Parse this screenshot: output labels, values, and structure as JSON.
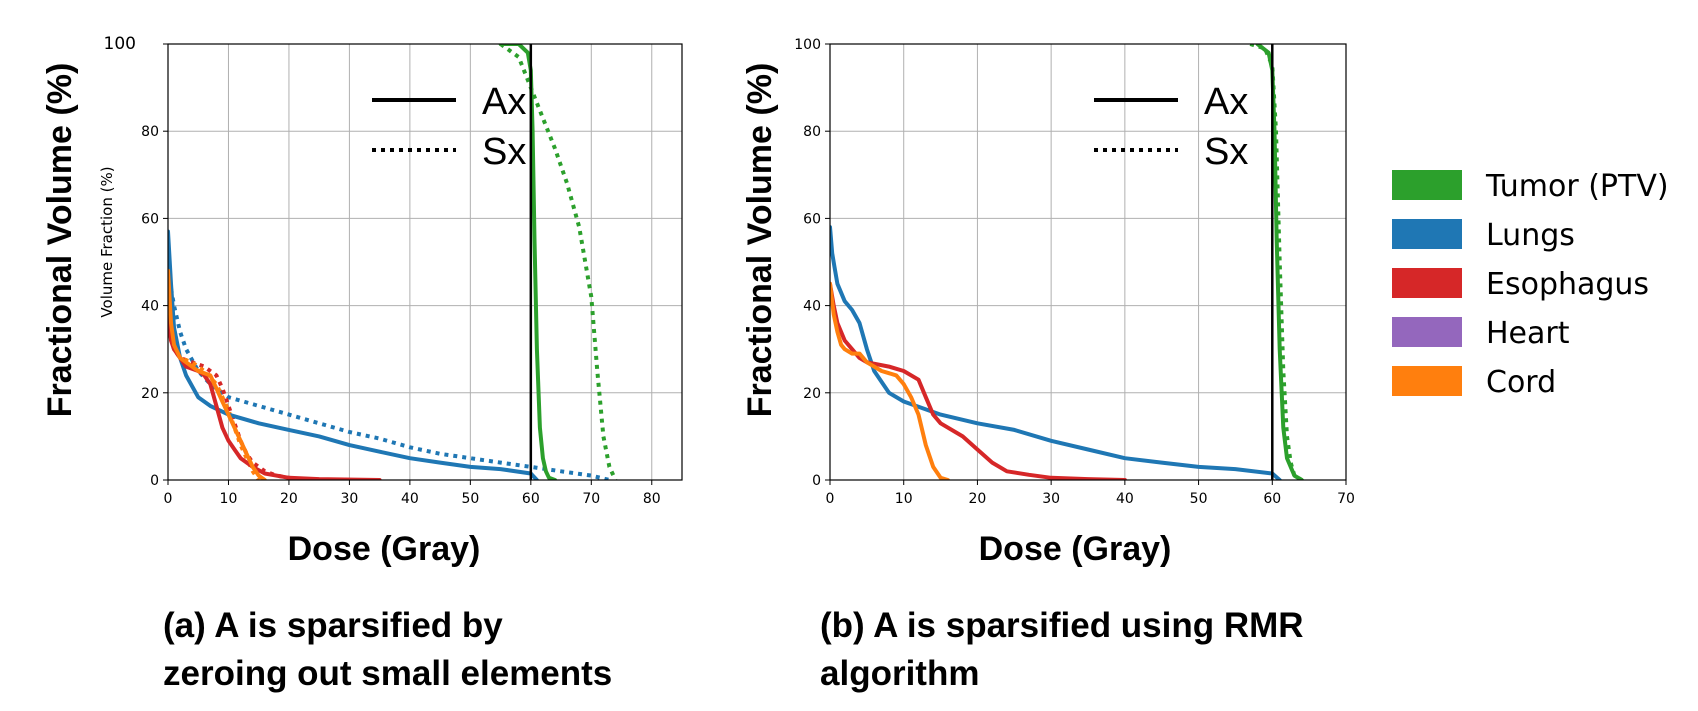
{
  "colors": {
    "tumor": "#2ca02c",
    "lungs": "#1f77b4",
    "esophagus": "#d62728",
    "heart": "#9467bd",
    "cord": "#ff7f0e"
  },
  "shared": {
    "ylabel_big": "Fractional Volume (%)",
    "xlabel_big": "Dose (Gray)",
    "style_legend": [
      {
        "label": "Ax",
        "style": "solid"
      },
      {
        "label": "Sx",
        "style": "dotted"
      }
    ],
    "structure_legend": [
      {
        "label": "Tumor (PTV)",
        "color": "#2ca02c"
      },
      {
        "label": "Lungs",
        "color": "#1f77b4"
      },
      {
        "label": "Esophagus",
        "color": "#d62728"
      },
      {
        "label": "Heart",
        "color": "#9467bd"
      },
      {
        "label": "Cord",
        "color": "#ff7f0e"
      }
    ]
  },
  "captions": {
    "a_line1": "(a) A is sparsified by",
    "a_line2": "zeroing out small elements",
    "b_line1": "(b) A is sparsified using RMR",
    "b_line2": "algorithm"
  },
  "chart_data": [
    {
      "type": "line",
      "panel": "a",
      "ylabel_small": "Volume Fraction (%)",
      "xlim": [
        0,
        85
      ],
      "ylim": [
        0,
        100
      ],
      "x_ticks": [
        0,
        10,
        20,
        30,
        40,
        50,
        60,
        70,
        80
      ],
      "y_ticks": [
        0,
        20,
        40,
        60,
        80,
        100
      ],
      "x_tick_labels": [
        "0",
        "10",
        "20",
        "30",
        "40",
        "50",
        "60",
        "70",
        "80"
      ],
      "y_tick_labels": [
        "0",
        "20",
        "40",
        "60",
        "80",
        "100"
      ],
      "grid": true,
      "series": [
        {
          "structure": "Tumor (PTV)",
          "style": "solid",
          "color": "#2ca02c",
          "x": [
            55,
            58,
            59.5,
            60,
            60.3,
            60.6,
            61,
            61.5,
            62,
            62.5,
            63,
            64
          ],
          "y": [
            100,
            100,
            98,
            94,
            80,
            55,
            30,
            12,
            5,
            2,
            0.5,
            0
          ]
        },
        {
          "structure": "Tumor (PTV)",
          "style": "dotted",
          "color": "#2ca02c",
          "x": [
            55,
            58,
            60,
            62,
            64,
            66,
            68,
            70,
            71,
            72,
            73,
            74
          ],
          "y": [
            100,
            97,
            90,
            83,
            76,
            68,
            58,
            42,
            25,
            10,
            3,
            0
          ]
        },
        {
          "structure": "Lungs",
          "style": "solid",
          "color": "#1f77b4",
          "x": [
            0,
            0.5,
            1,
            2,
            3,
            5,
            7,
            10,
            15,
            20,
            25,
            30,
            35,
            40,
            45,
            50,
            55,
            60,
            61
          ],
          "y": [
            57,
            45,
            35,
            28,
            24,
            19,
            17,
            15,
            13,
            11.5,
            10,
            8,
            6.5,
            5,
            4,
            3,
            2.5,
            1.5,
            0
          ]
        },
        {
          "structure": "Lungs",
          "style": "dotted",
          "color": "#1f77b4",
          "x": [
            0,
            0.5,
            1,
            2,
            3,
            5,
            7,
            10,
            15,
            20,
            25,
            30,
            35,
            40,
            45,
            50,
            55,
            60,
            65,
            70,
            73
          ],
          "y": [
            50,
            44,
            40,
            34,
            30,
            25,
            22,
            19,
            17,
            15,
            13,
            11,
            9.5,
            7.5,
            6,
            5,
            4,
            3,
            2,
            1,
            0
          ]
        },
        {
          "structure": "Esophagus",
          "style": "solid",
          "color": "#d62728",
          "x": [
            0,
            0.5,
            1,
            2,
            3,
            5,
            6,
            7,
            8,
            9,
            10,
            11,
            12,
            14,
            16,
            20,
            25,
            35
          ],
          "y": [
            38,
            32,
            30,
            28,
            26,
            25,
            24,
            22,
            17,
            12,
            9,
            7,
            5,
            3,
            1.5,
            0.5,
            0.2,
            0
          ]
        },
        {
          "structure": "Esophagus",
          "style": "dotted",
          "color": "#d62728",
          "x": [
            0,
            1,
            2,
            4,
            6,
            8,
            9,
            10,
            11,
            12,
            13,
            14,
            16,
            18,
            22
          ],
          "y": [
            35,
            30,
            28,
            27,
            26,
            24,
            21,
            17,
            13,
            9,
            6,
            4,
            2,
            1,
            0
          ]
        },
        {
          "structure": "Cord",
          "style": "solid",
          "color": "#ff7f0e",
          "x": [
            0,
            0.5,
            1,
            2,
            3,
            5,
            7,
            8,
            9,
            10,
            11,
            12,
            13,
            14,
            15,
            16
          ],
          "y": [
            48,
            36,
            31,
            28,
            27,
            25,
            24,
            21,
            18,
            15,
            12,
            9,
            6,
            3,
            1,
            0
          ]
        },
        {
          "structure": "Cord",
          "style": "dotted",
          "color": "#ff7f0e",
          "x": [
            0,
            0.5,
            1,
            2,
            4,
            6,
            8,
            10,
            11,
            12,
            13,
            14,
            15
          ],
          "y": [
            45,
            34,
            30,
            28,
            27,
            25,
            22,
            16,
            12,
            8,
            5,
            2,
            0
          ]
        }
      ],
      "vline_x": 60
    },
    {
      "type": "line",
      "panel": "b",
      "ylabel_small": "",
      "xlim": [
        0,
        70
      ],
      "ylim": [
        0,
        100
      ],
      "x_ticks": [
        0,
        10,
        20,
        30,
        40,
        50,
        60,
        70
      ],
      "y_ticks": [
        0,
        20,
        40,
        60,
        80,
        100
      ],
      "x_tick_labels": [
        "0",
        "10",
        "20",
        "30",
        "40",
        "50",
        "60",
        "70"
      ],
      "y_tick_labels": [
        "0",
        "20",
        "40",
        "60",
        "80",
        "100"
      ],
      "grid": true,
      "series": [
        {
          "structure": "Tumor (PTV)",
          "style": "solid",
          "color": "#2ca02c",
          "x": [
            58,
            59.5,
            60,
            60.3,
            60.6,
            61,
            61.5,
            62,
            63,
            64
          ],
          "y": [
            100,
            98,
            94,
            80,
            55,
            30,
            12,
            5,
            1,
            0
          ]
        },
        {
          "structure": "Tumor (PTV)",
          "style": "dotted",
          "color": "#2ca02c",
          "x": [
            57,
            59,
            60,
            60.5,
            61,
            61.5,
            62,
            62.5,
            63,
            64
          ],
          "y": [
            100,
            99,
            95,
            80,
            50,
            25,
            10,
            4,
            1,
            0
          ]
        },
        {
          "structure": "Lungs",
          "style": "solid",
          "color": "#1f77b4",
          "x": [
            0,
            0.3,
            0.6,
            1,
            2,
            3,
            4,
            5,
            6,
            8,
            10,
            15,
            20,
            25,
            30,
            35,
            40,
            45,
            50,
            55,
            60,
            61
          ],
          "y": [
            58,
            52,
            49,
            45,
            41,
            39,
            36,
            30,
            25,
            20,
            18,
            15,
            13,
            11.5,
            9,
            7,
            5,
            4,
            3,
            2.5,
            1.5,
            0
          ]
        },
        {
          "structure": "Esophagus",
          "style": "solid",
          "color": "#d62728",
          "x": [
            0,
            0.5,
            1,
            2,
            3,
            4,
            5,
            8,
            10,
            12,
            13,
            14,
            15,
            18,
            20,
            22,
            24,
            27,
            30,
            35,
            40
          ],
          "y": [
            45,
            40,
            36,
            32,
            30,
            28,
            27,
            26,
            25,
            23,
            19,
            15,
            13,
            10,
            7,
            4,
            2,
            1.2,
            0.5,
            0.2,
            0
          ]
        },
        {
          "structure": "Cord",
          "style": "solid",
          "color": "#ff7f0e",
          "x": [
            0,
            0.5,
            1,
            1.5,
            2,
            3,
            4,
            5,
            7,
            9,
            10,
            11,
            12,
            13,
            14,
            15,
            16
          ],
          "y": [
            45,
            38,
            34,
            31,
            30,
            29,
            29,
            27,
            25,
            24,
            22,
            19,
            15,
            8,
            3,
            0.5,
            0
          ]
        }
      ],
      "vline_x": 60
    }
  ]
}
